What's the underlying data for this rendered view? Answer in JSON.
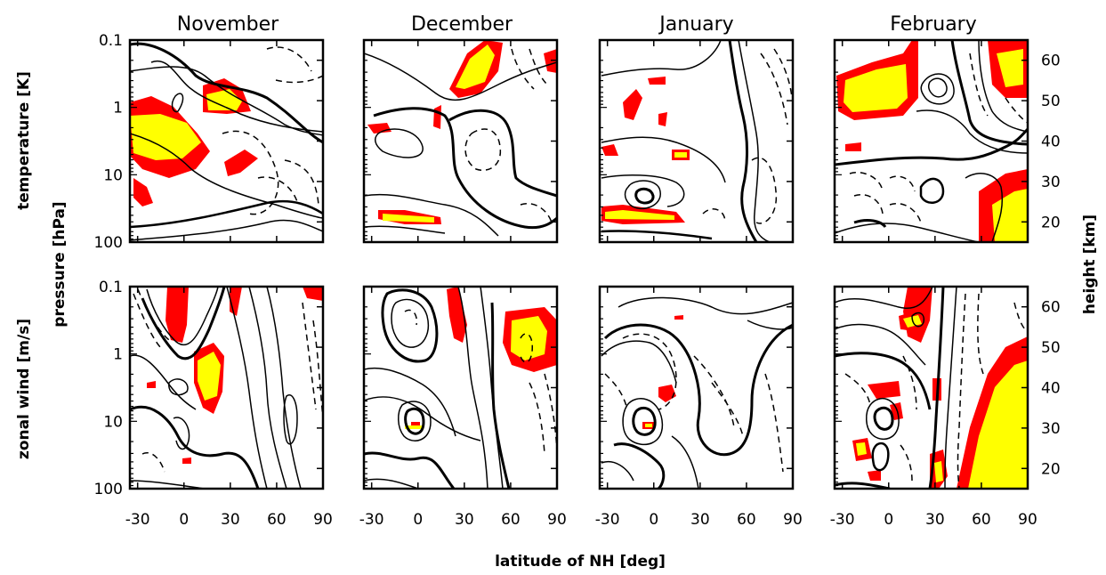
{
  "chart_data": {
    "type": "contour",
    "columns": [
      "November",
      "December",
      "January",
      "February"
    ],
    "rows": [
      {
        "label": "temperature [K]"
      },
      {
        "label": "zonal wind [m/s]"
      }
    ],
    "ylabel_left": "pressure [hPa]",
    "ylabel_right": "height [km]",
    "xlabel": "latitude of NH [deg]",
    "x_ticks": [
      "-30",
      "0",
      "30",
      "60",
      "90"
    ],
    "x_tick_values": [
      -30,
      0,
      30,
      60,
      90
    ],
    "xlim": [
      -35,
      90
    ],
    "y_ticks": [
      "0.1",
      "1",
      "10",
      "100"
    ],
    "y_tick_values": [
      0.1,
      1,
      10,
      100
    ],
    "ylim": [
      0.1,
      100
    ],
    "y_scale": "log",
    "height_ticks": [
      "60",
      "50",
      "40",
      "30",
      "20"
    ],
    "height_tick_values": [
      60,
      50,
      40,
      30,
      20
    ],
    "height_lim": [
      15,
      65
    ],
    "colors": {
      "contour": "#000000",
      "shade_outer": "#ff0000",
      "shade_inner": "#ffff00"
    }
  }
}
